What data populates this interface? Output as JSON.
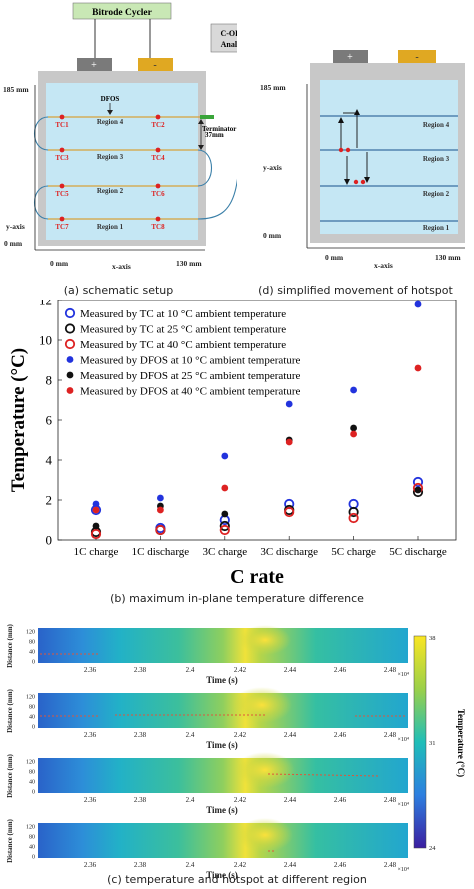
{
  "panel_a": {
    "cycler_label": "Bitrode Cycler",
    "analyser_label_1": "C-OFDR",
    "analyser_label_2": "Analyser",
    "plus": "+",
    "minus": "-",
    "y_top": "185 mm",
    "y_bottom": "0 mm",
    "y_axis": "y-axis",
    "x_left": "0 mm",
    "x_right": "130 mm",
    "x_axis": "x-axis",
    "dfos": "DFOS",
    "terminator": "Terminator",
    "gap": "37mm",
    "regions": [
      "Region 4",
      "Region 3",
      "Region 2",
      "Region 1"
    ],
    "tcs": [
      [
        "TC1",
        "TC2"
      ],
      [
        "TC3",
        "TC4"
      ],
      [
        "TC5",
        "TC6"
      ],
      [
        "TC7",
        "TC8"
      ]
    ],
    "caption": "(a) schematic setup"
  },
  "panel_d": {
    "plus": "+",
    "minus": "-",
    "y_top": "185 mm",
    "y_bottom": "0 mm",
    "y_axis": "y-axis",
    "x_left": "0 mm",
    "x_right": "130 mm",
    "x_axis": "x-axis",
    "regions": [
      "Region 4",
      "Region 3",
      "Region 2",
      "Region 1"
    ],
    "caption": "(d) simplified movement of hotspot"
  },
  "chart_data": {
    "type": "scatter",
    "title": "",
    "xlabel": "C rate",
    "ylabel": "Temperature (°C)",
    "categories": [
      "1C charge",
      "1C discharge",
      "3C charge",
      "3C discharge",
      "5C charge",
      "5C discharge"
    ],
    "ylim": [
      0,
      12
    ],
    "yticks": [
      0,
      2,
      4,
      6,
      8,
      10,
      12
    ],
    "legend_position": "top-left",
    "series": [
      {
        "name": "Measured by TC at 10 °C ambient temperature",
        "marker": "open",
        "color": "#2233dd",
        "values": [
          1.5,
          0.6,
          1.0,
          1.8,
          1.8,
          2.9
        ]
      },
      {
        "name": "Measured by TC at 25 °C ambient temperature",
        "marker": "open",
        "color": "#111111",
        "values": [
          0.4,
          0.5,
          0.7,
          1.5,
          1.4,
          2.4
        ]
      },
      {
        "name": "Measured by TC at 40 °C ambient temperature",
        "marker": "open",
        "color": "#dd2222",
        "values": [
          0.3,
          0.5,
          0.5,
          1.4,
          1.1,
          2.6
        ]
      },
      {
        "name": "Measured by DFOS at 10 °C ambient temperature",
        "marker": "filled",
        "color": "#2233dd",
        "values": [
          1.8,
          2.1,
          4.2,
          6.8,
          7.5,
          11.8
        ]
      },
      {
        "name": "Measured by DFOS at 25 °C ambient temperature",
        "marker": "filled",
        "color": "#111111",
        "values": [
          0.7,
          1.7,
          1.3,
          5.0,
          5.6,
          2.5
        ]
      },
      {
        "name": "Measured by DFOS at 40 °C ambient temperature",
        "marker": "filled",
        "color": "#dd2222",
        "values": [
          1.5,
          1.5,
          2.6,
          4.9,
          5.3,
          8.6
        ]
      }
    ],
    "caption": "(b) maximum in-plane temperature difference"
  },
  "heatmaps": {
    "ylabel": "Distance (mm)",
    "xlabel": "Time (s)",
    "xticks": [
      "2.36",
      "2.38",
      "2.4",
      "2.42",
      "2.44",
      "2.46",
      "2.48"
    ],
    "yticks": [
      "120",
      "80",
      "40",
      "0"
    ],
    "exponent": "×10⁴",
    "colorbar_label": "Temperature (°C)",
    "colorbar_ticks": [
      "38",
      "31",
      "24"
    ],
    "caption": "(c) temperature and hotspot at different region"
  }
}
